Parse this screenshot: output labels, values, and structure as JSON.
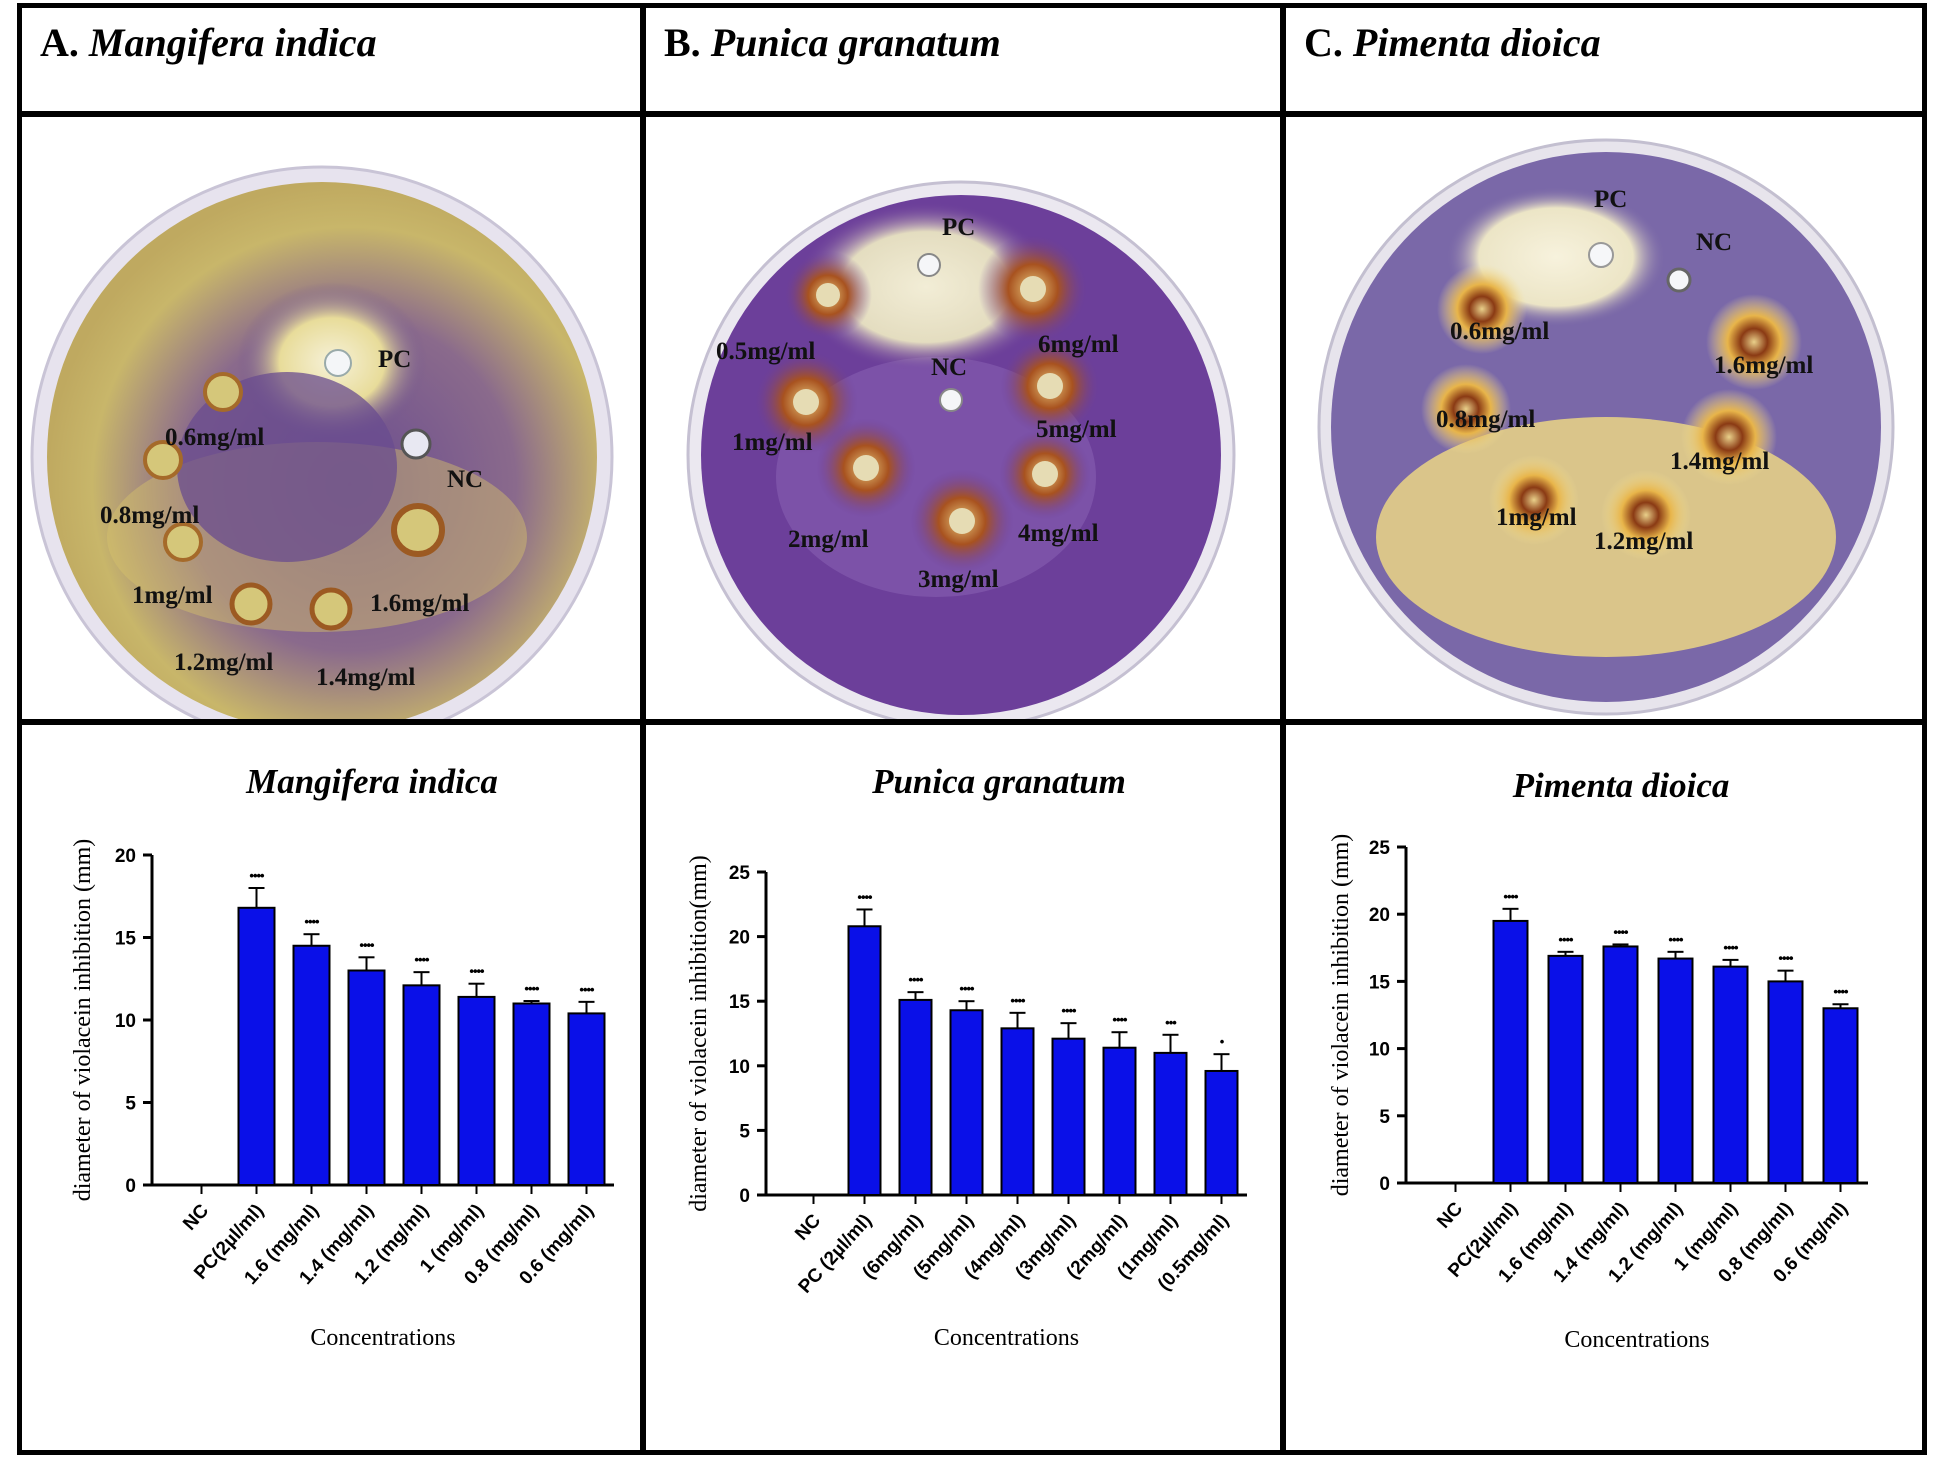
{
  "panels": [
    {
      "letter": "A.",
      "species": "Mangifera indica",
      "plate_labels": [
        "PC",
        "NC",
        "0.6mg/ml",
        "0.8mg/ml",
        "1mg/ml",
        "1.2mg/ml",
        "1.4mg/ml",
        "1.6mg/ml"
      ],
      "plate_colors": {
        "medium": "#6b4f8e",
        "halo": "#d9c76a",
        "clear": "#f3efd8"
      }
    },
    {
      "letter": "B.",
      "species": "Punica granatum",
      "plate_labels": [
        "PC",
        "NC",
        "0.5mg/ml",
        "1mg/ml",
        "2mg/ml",
        "3mg/ml",
        "4mg/ml",
        "5mg/ml",
        "6mg/ml"
      ],
      "plate_colors": {
        "medium": "#6c3f9a",
        "halo": "#9a4a2a",
        "clear": "#efe9cf"
      }
    },
    {
      "letter": "C.",
      "species": "Pimenta dioica",
      "plate_labels": [
        "PC",
        "NC",
        "0.6mg/ml",
        "0.8mg/ml",
        "1mg/ml",
        "1.2mg/ml",
        "1.4mg/ml",
        "1.6mg/ml"
      ],
      "plate_colors": {
        "medium": "#7a68a8",
        "halo": "#f2dc82",
        "clear": "#f7f2dd"
      }
    }
  ],
  "bar_color": "#0a10e8",
  "chart_data": [
    {
      "type": "bar",
      "title": "Mangifera indica",
      "xlabel": "Concentrations",
      "ylabel": "diameter of violacein inhibition (mm)",
      "ylim": [
        0,
        20
      ],
      "yticks": [
        "0",
        "5",
        "10",
        "15",
        "20"
      ],
      "categories": [
        "NC",
        "PC(2µl/ml)",
        "1.6 (mg/ml)",
        "1.4 (mg/ml)",
        "1.2 (mg/ml)",
        "1 (mg/ml)",
        "0.8 (mg/ml)",
        "0.6 (mg/ml)"
      ],
      "values": [
        0,
        16.8,
        14.5,
        13.0,
        12.1,
        11.4,
        11.0,
        10.4
      ],
      "errors": [
        0,
        1.2,
        0.7,
        0.8,
        0.8,
        0.8,
        0.15,
        0.7
      ],
      "significance": [
        "",
        "••••",
        "••••",
        "••••",
        "••••",
        "••••",
        "••••",
        "••••"
      ]
    },
    {
      "type": "bar",
      "title": "Punica granatum",
      "xlabel": "Concentrations",
      "ylabel": "diameter of violacein inhibition(mm)",
      "ylim": [
        0,
        25
      ],
      "yticks": [
        "0",
        "5",
        "10",
        "15",
        "20",
        "25"
      ],
      "categories": [
        "NC",
        "PC (2µl/ml)",
        "(6mg/ml)",
        "(5mg/ml)",
        "(4mg/ml)",
        "(3mg/ml)",
        "(2mg/ml)",
        "(1mg/ml)",
        "(0.5mg/ml)"
      ],
      "values": [
        0,
        20.8,
        15.1,
        14.3,
        12.9,
        12.1,
        11.4,
        11.0,
        9.6
      ],
      "errors": [
        0,
        1.3,
        0.6,
        0.7,
        1.2,
        1.2,
        1.2,
        1.4,
        1.3
      ],
      "significance": [
        "",
        "••••",
        "••••",
        "••••",
        "••••",
        "••••",
        "••••",
        "•••",
        "•"
      ]
    },
    {
      "type": "bar",
      "title": "Pimenta dioica",
      "xlabel": "Concentrations",
      "ylabel": "diameter of violacein inhibition (mm)",
      "ylim": [
        0,
        25
      ],
      "yticks": [
        "0",
        "5",
        "10",
        "15",
        "20",
        "25"
      ],
      "categories": [
        "NC",
        "PC(2µl/ml)",
        "1.6 (mg/ml)",
        "1.4 (mg/ml)",
        "1.2 (mg/ml)",
        "1 (mg/ml)",
        "0.8 (mg/ml)",
        "0.6 (mg/ml)"
      ],
      "values": [
        0,
        19.5,
        16.9,
        17.6,
        16.7,
        16.1,
        15.0,
        13.0
      ],
      "errors": [
        0,
        0.9,
        0.3,
        0.15,
        0.5,
        0.5,
        0.8,
        0.3
      ],
      "significance": [
        "",
        "••••",
        "••••",
        "••••",
        "••••",
        "••••",
        "••••",
        "••••"
      ]
    }
  ]
}
